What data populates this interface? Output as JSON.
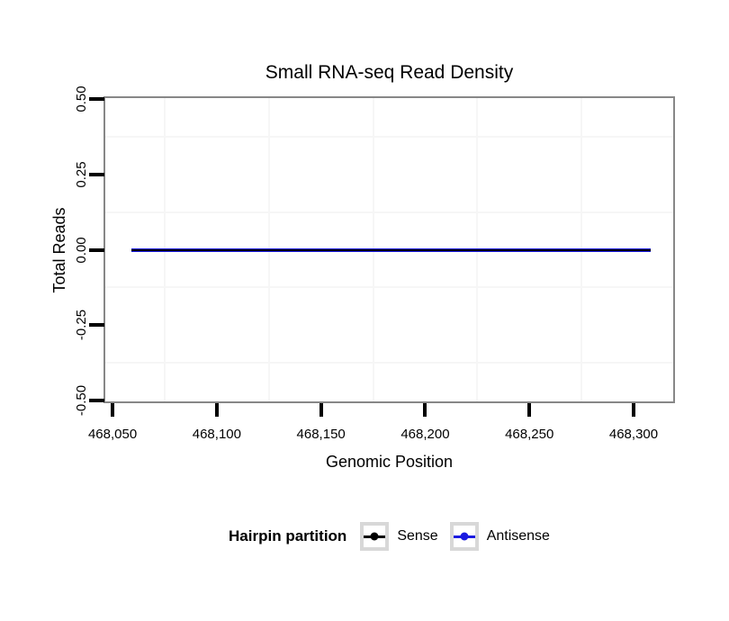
{
  "chart_data": {
    "type": "line",
    "title": "Small RNA-seq Read Density",
    "xlabel": "Genomic Position",
    "ylabel": "Total Reads",
    "xlim": [
      468046.5,
      468319
    ],
    "ylim": [
      -0.504,
      0.504
    ],
    "x_ticks": [
      {
        "value": 468050,
        "label": "468,050"
      },
      {
        "value": 468100,
        "label": "468,100"
      },
      {
        "value": 468150,
        "label": "468,150"
      },
      {
        "value": 468200,
        "label": "468,200"
      },
      {
        "value": 468250,
        "label": "468,250"
      },
      {
        "value": 468300,
        "label": "468,300"
      }
    ],
    "y_ticks": [
      {
        "value": 0.5,
        "label": "0.50"
      },
      {
        "value": 0.25,
        "label": "0.25"
      },
      {
        "value": 0,
        "label": "0.00"
      },
      {
        "value": -0.25,
        "label": "-0.25"
      },
      {
        "value": -0.5,
        "label": "-0.50"
      }
    ],
    "grid": {
      "minor_x_values": [
        468075,
        468125,
        468175,
        468225,
        468275
      ],
      "minor_y_values": [
        0.375,
        0.125,
        -0.125,
        -0.375
      ],
      "minor_color": "#f6f6f6",
      "major_visible": false
    },
    "series": [
      {
        "name": "Sense",
        "color": "#000000",
        "x": [
          468059,
          468308
        ],
        "y": [
          0,
          0
        ],
        "line_width": 2
      },
      {
        "name": "Antisense",
        "color": "#1a1ae0",
        "x": [
          468059,
          468308
        ],
        "y": [
          0,
          0
        ],
        "line_width": 4
      }
    ],
    "legend": {
      "title": "Hairpin partition",
      "position": "bottom"
    }
  },
  "styles": {
    "panel_border_color": "#878787",
    "tick_color": "#000000",
    "legend_key_border_color": "#d8d8d8",
    "background": "#ffffff"
  }
}
